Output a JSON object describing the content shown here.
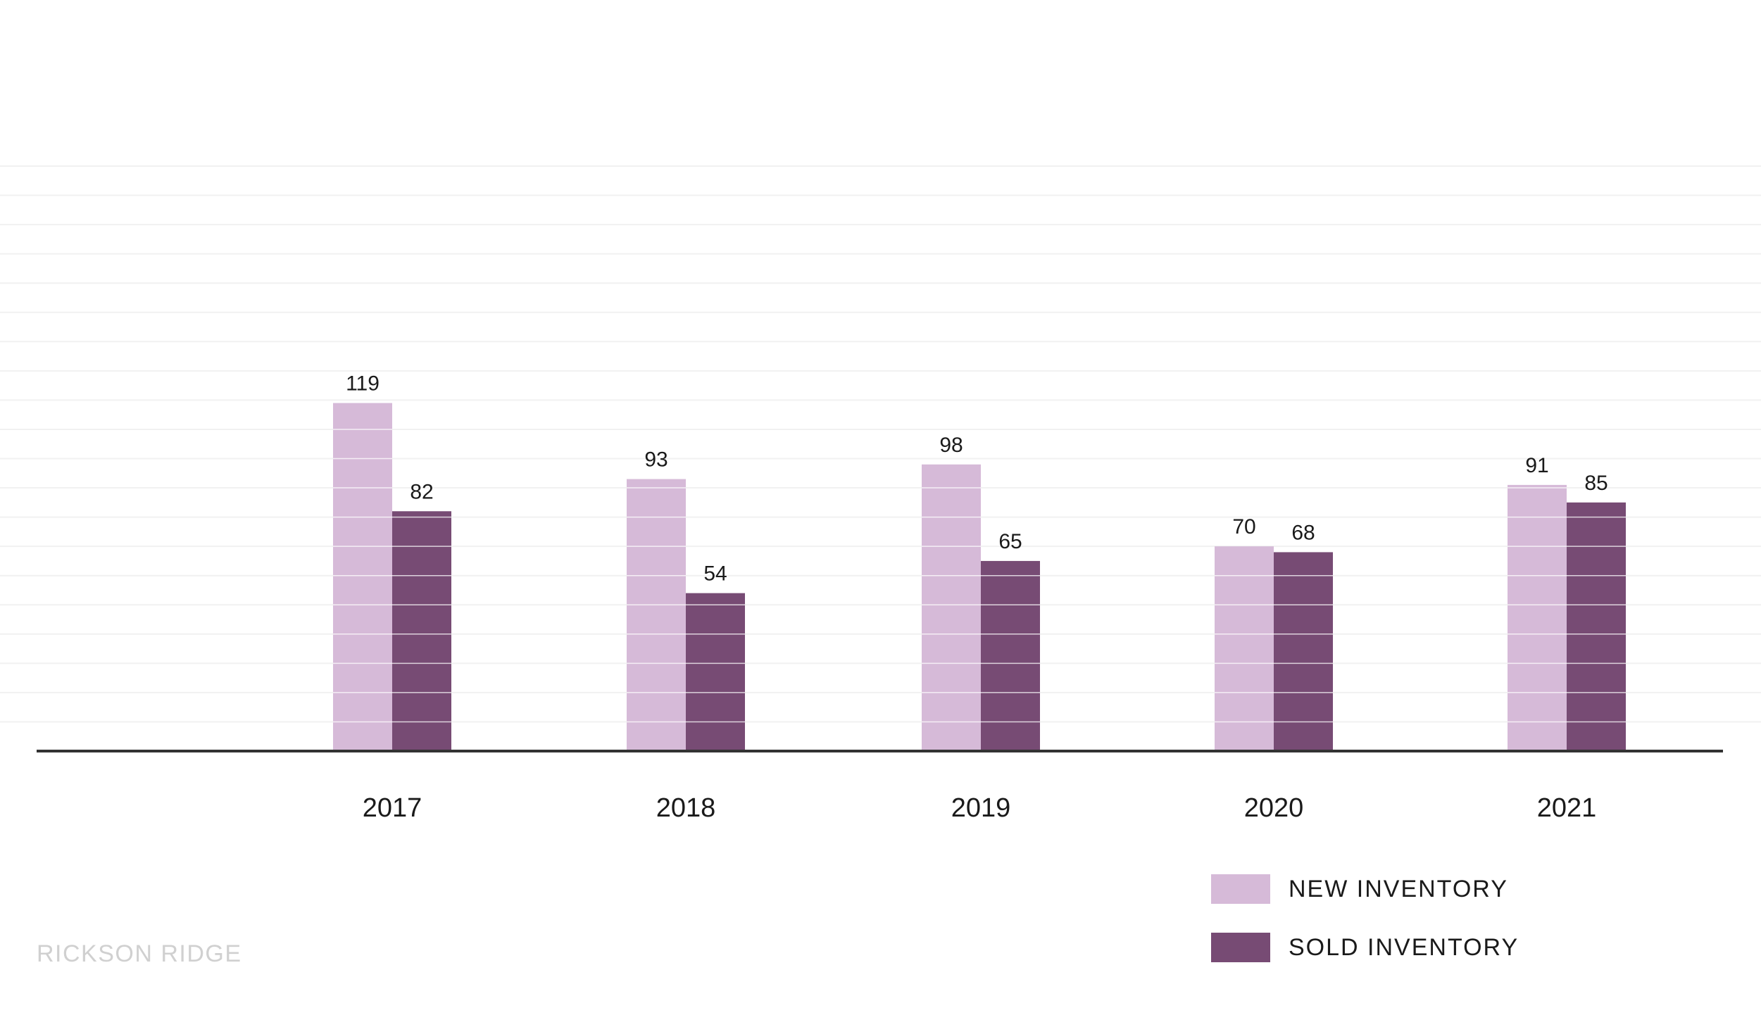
{
  "chart_data": {
    "type": "bar",
    "categories": [
      "2017",
      "2018",
      "2019",
      "2020",
      "2021"
    ],
    "series": [
      {
        "name": "NEW INVENTORY",
        "color": "#d6bad8",
        "values": [
          119,
          93,
          98,
          70,
          91
        ]
      },
      {
        "name": "SOLD INVENTORY",
        "color": "#774b74",
        "values": [
          82,
          54,
          65,
          68,
          85
        ]
      }
    ],
    "ylim": [
      0,
      200
    ],
    "grid": true,
    "legend": "bottom-right",
    "axis_color": "#333333"
  },
  "footer": {
    "text": "RICKSON RIDGE"
  }
}
